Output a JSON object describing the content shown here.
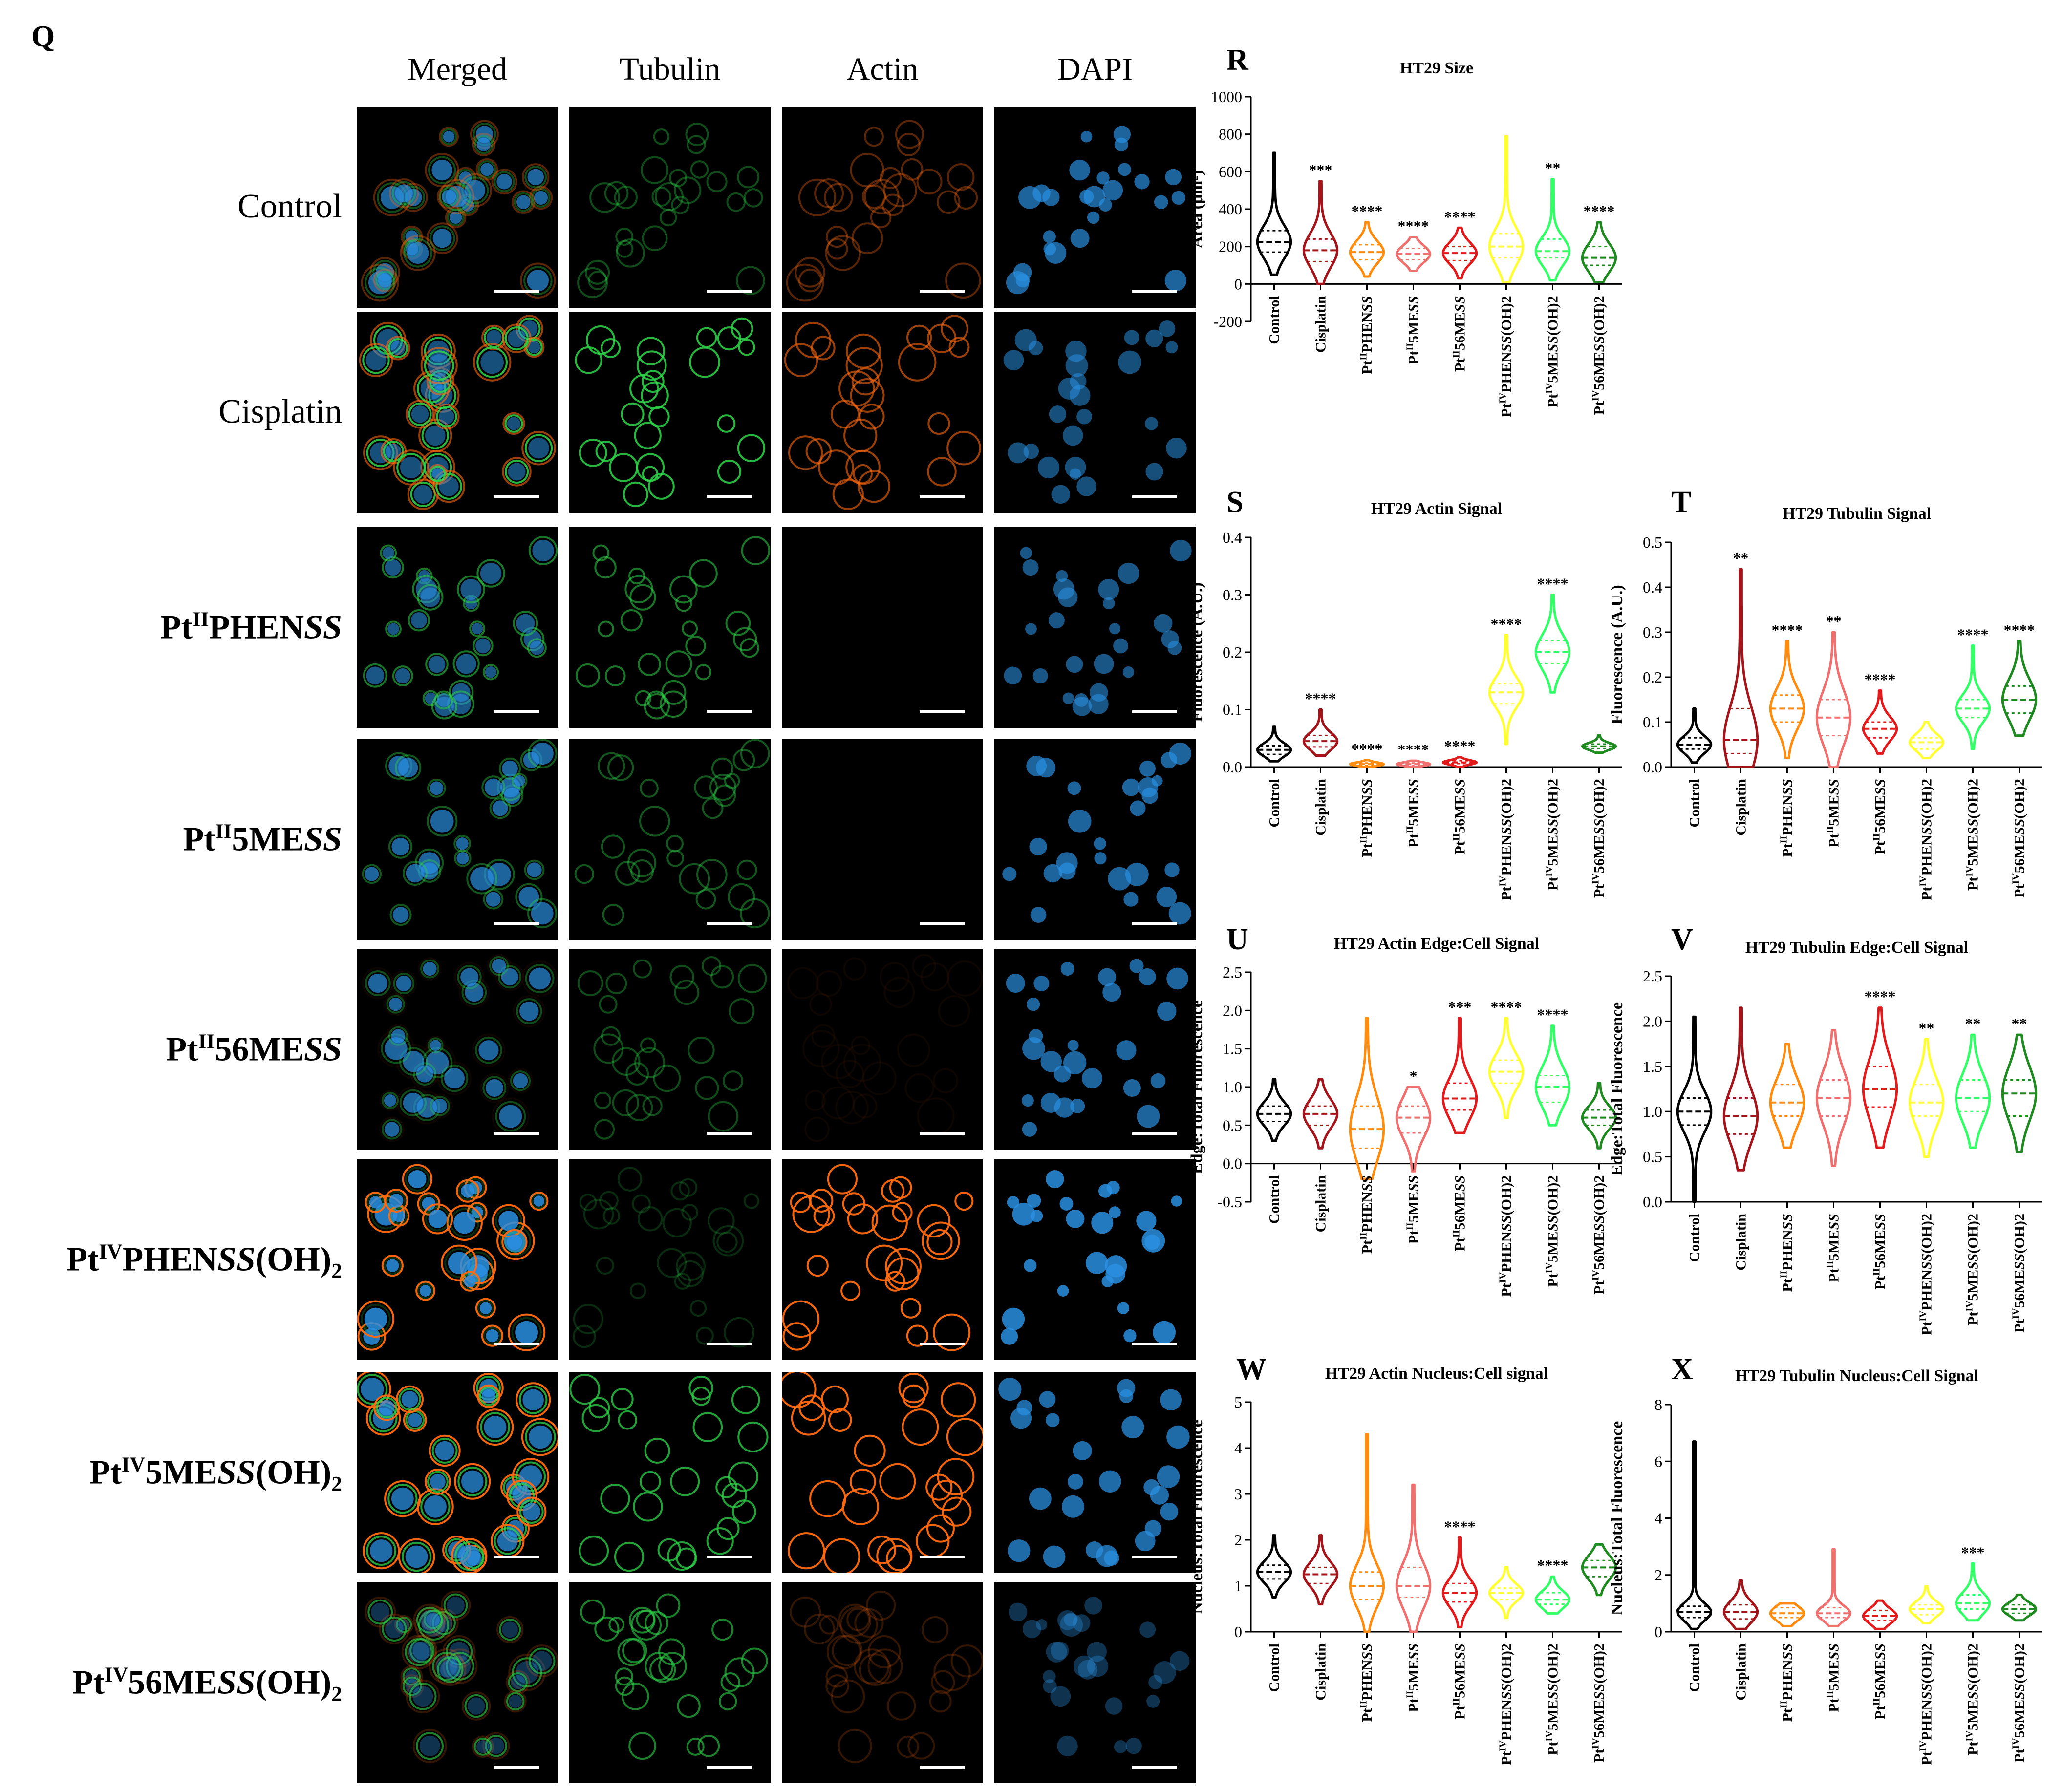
{
  "figure": {
    "panel_q": {
      "label": "Q",
      "columns": [
        "Merged",
        "Tubulin",
        "Actin",
        "DAPI"
      ],
      "rows": [
        {
          "html": "Control",
          "bold": false
        },
        {
          "html": "Cisplatin",
          "bold": false
        },
        {
          "html": "Pt<sup>II</sup>PHEN<i>SS</i>",
          "bold": true
        },
        {
          "html": "Pt<sup>II</sup>5ME<i>SS</i>",
          "bold": true
        },
        {
          "html": "Pt<sup>II</sup>56ME<i>SS</i>",
          "bold": true
        },
        {
          "html": "Pt<sup>IV</sup>PHEN<i>SS</i>(OH)<sub>2</sub>",
          "bold": true
        },
        {
          "html": "Pt<sup>IV</sup>5ME<i>SS</i>(OH)<sub>2</sub>",
          "bold": true
        },
        {
          "html": "Pt<sup>IV</sup>56ME<i>SS</i>(OH)<sub>2</sub>",
          "bold": true
        }
      ],
      "channel_colors": {
        "tubulin": "#2fd64a",
        "actin": "#ff6a10",
        "dapi": "#2a8fe0"
      },
      "row_channel_intensity": [
        {
          "tubulin": 0.35,
          "actin": 0.35,
          "dapi": 0.7
        },
        {
          "tubulin": 0.85,
          "actin": 0.6,
          "dapi": 0.55
        },
        {
          "tubulin": 0.55,
          "actin": 0.0,
          "dapi": 0.6
        },
        {
          "tubulin": 0.4,
          "actin": 0.0,
          "dapi": 0.7
        },
        {
          "tubulin": 0.35,
          "actin": 0.05,
          "dapi": 0.7
        },
        {
          "tubulin": 0.2,
          "actin": 0.95,
          "dapi": 0.85
        },
        {
          "tubulin": 0.75,
          "actin": 0.95,
          "dapi": 0.75
        },
        {
          "tubulin": 0.6,
          "actin": 0.2,
          "dapi": 0.35
        }
      ]
    },
    "groups_names": [
      "Control",
      "Cisplatin",
      "PtIIPHENSS",
      "PtII5MESS",
      "PtII56MESS",
      "PtIVPHENSS(OH)2",
      "PtIV5MESS(OH)2",
      "PtIV56MESS(OH)2"
    ],
    "group_colors": [
      "#000000",
      "#a3151a",
      "#ff8c0f",
      "#f07070",
      "#e31a1c",
      "#ffff33",
      "#33ff66",
      "#1f8a1f"
    ]
  },
  "chart_data": [
    {
      "id": "R",
      "panel_label": "R",
      "type": "violin",
      "title": "HT29 Size",
      "ylabel": "Area (μm²)",
      "ylim": [
        -200,
        1000
      ],
      "yticks": [
        "-200",
        "0",
        "200",
        "400",
        "600",
        "800",
        "1000"
      ],
      "ytick_values": [
        -200,
        0,
        200,
        400,
        600,
        800,
        1000
      ],
      "categories": [
        "Control",
        "Cisplatin",
        "PtIIPHENSS",
        "PtII5MESS",
        "PtII56MESS",
        "PtIVPHENSS(OH)2",
        "PtIV5MESS(OH)2",
        "PtIV56MESS(OH)2"
      ],
      "series": [
        {
          "min": 50,
          "q1": 170,
          "median": 225,
          "q3": 285,
          "max": 700
        },
        {
          "min": 0,
          "q1": 120,
          "median": 180,
          "q3": 240,
          "max": 550
        },
        {
          "min": 40,
          "q1": 130,
          "median": 170,
          "q3": 210,
          "max": 330
        },
        {
          "min": 70,
          "q1": 130,
          "median": 160,
          "q3": 190,
          "max": 250
        },
        {
          "min": 30,
          "q1": 125,
          "median": 165,
          "q3": 200,
          "max": 300
        },
        {
          "min": 10,
          "q1": 140,
          "median": 200,
          "q3": 270,
          "max": 790
        },
        {
          "min": 20,
          "q1": 140,
          "median": 175,
          "q3": 240,
          "max": 560
        },
        {
          "min": 10,
          "q1": 100,
          "median": 140,
          "q3": 200,
          "max": 330
        }
      ],
      "significance": [
        "",
        "***",
        "****",
        "****",
        "****",
        "",
        "**",
        "****"
      ]
    },
    {
      "id": "S",
      "panel_label": "S",
      "type": "violin",
      "title": "HT29 Actin Signal",
      "ylabel": "Fluorescence (A.U.)",
      "ylim": [
        0,
        0.4
      ],
      "yticks": [
        "0.0",
        "0.1",
        "0.2",
        "0.3",
        "0.4"
      ],
      "ytick_values": [
        0,
        0.1,
        0.2,
        0.3,
        0.4
      ],
      "categories": [
        "Control",
        "Cisplatin",
        "PtIIPHENSS",
        "PtII5MESS",
        "PtII56MESS",
        "PtIVPHENSS(OH)2",
        "PtIV5MESS(OH)2",
        "PtIV56MESS(OH)2"
      ],
      "series": [
        {
          "min": 0.01,
          "q1": 0.022,
          "median": 0.03,
          "q3": 0.037,
          "max": 0.07
        },
        {
          "min": 0.02,
          "q1": 0.035,
          "median": 0.045,
          "q3": 0.055,
          "max": 0.1
        },
        {
          "min": 0.0,
          "q1": 0.003,
          "median": 0.005,
          "q3": 0.007,
          "max": 0.012
        },
        {
          "min": 0.0,
          "q1": 0.003,
          "median": 0.005,
          "q3": 0.007,
          "max": 0.011
        },
        {
          "min": 0.0,
          "q1": 0.006,
          "median": 0.008,
          "q3": 0.011,
          "max": 0.017
        },
        {
          "min": 0.04,
          "q1": 0.11,
          "median": 0.13,
          "q3": 0.145,
          "max": 0.23
        },
        {
          "min": 0.13,
          "q1": 0.18,
          "median": 0.2,
          "q3": 0.22,
          "max": 0.3
        },
        {
          "min": 0.025,
          "q1": 0.032,
          "median": 0.036,
          "q3": 0.04,
          "max": 0.055
        }
      ],
      "significance": [
        "",
        "****",
        "****",
        "****",
        "****",
        "****",
        "****",
        ""
      ]
    },
    {
      "id": "T",
      "panel_label": "T",
      "type": "violin",
      "title": "HT29 Tubulin Signal",
      "ylabel": "Fluorescence (A.U.)",
      "ylim": [
        0,
        0.5
      ],
      "yticks": [
        "0.0",
        "0.1",
        "0.2",
        "0.3",
        "0.4",
        "0.5"
      ],
      "ytick_values": [
        0,
        0.1,
        0.2,
        0.3,
        0.4,
        0.5
      ],
      "categories": [
        "Control",
        "Cisplatin",
        "PtIIPHENSS",
        "PtII5MESS",
        "PtII56MESS",
        "PtIVPHENSS(OH)2",
        "PtIV5MESS(OH)2",
        "PtIV56MESS(OH)2"
      ],
      "series": [
        {
          "min": 0.01,
          "q1": 0.04,
          "median": 0.05,
          "q3": 0.065,
          "max": 0.13
        },
        {
          "min": 0.0,
          "q1": 0.03,
          "median": 0.06,
          "q3": 0.13,
          "max": 0.44
        },
        {
          "min": 0.02,
          "q1": 0.1,
          "median": 0.13,
          "q3": 0.16,
          "max": 0.28
        },
        {
          "min": 0.0,
          "q1": 0.07,
          "median": 0.11,
          "q3": 0.15,
          "max": 0.3
        },
        {
          "min": 0.03,
          "q1": 0.065,
          "median": 0.085,
          "q3": 0.1,
          "max": 0.17
        },
        {
          "min": 0.02,
          "q1": 0.04,
          "median": 0.055,
          "q3": 0.065,
          "max": 0.1
        },
        {
          "min": 0.04,
          "q1": 0.11,
          "median": 0.13,
          "q3": 0.15,
          "max": 0.27
        },
        {
          "min": 0.07,
          "q1": 0.12,
          "median": 0.15,
          "q3": 0.18,
          "max": 0.28
        }
      ],
      "significance": [
        "",
        "**",
        "****",
        "**",
        "****",
        "",
        "****",
        "****"
      ]
    },
    {
      "id": "U",
      "panel_label": "U",
      "type": "violin",
      "title": "HT29 Actin Edge:Cell Signal",
      "ylabel": "Edge:Total Fluorescence",
      "ylim": [
        -0.5,
        2.5
      ],
      "yticks": [
        "-0.5",
        "0.0",
        "0.5",
        "1.0",
        "1.5",
        "2.0",
        "2.5"
      ],
      "ytick_values": [
        -0.5,
        0,
        0.5,
        1,
        1.5,
        2,
        2.5
      ],
      "categories": [
        "Control",
        "Cisplatin",
        "PtIIPHENSS",
        "PtII5MESS",
        "PtII56MESS",
        "PtIVPHENSS(OH)2",
        "PtIV5MESS(OH)2",
        "PtIV56MESS(OH)2"
      ],
      "series": [
        {
          "min": 0.3,
          "q1": 0.55,
          "median": 0.65,
          "q3": 0.75,
          "max": 1.1
        },
        {
          "min": 0.2,
          "q1": 0.5,
          "median": 0.65,
          "q3": 0.75,
          "max": 1.1
        },
        {
          "min": -0.2,
          "q1": 0.2,
          "median": 0.45,
          "q3": 0.75,
          "max": 1.9
        },
        {
          "min": -0.1,
          "q1": 0.4,
          "median": 0.6,
          "q3": 0.75,
          "max": 1.0
        },
        {
          "min": 0.4,
          "q1": 0.7,
          "median": 0.85,
          "q3": 1.05,
          "max": 1.9
        },
        {
          "min": 0.6,
          "q1": 1.05,
          "median": 1.2,
          "q3": 1.35,
          "max": 1.9
        },
        {
          "min": 0.5,
          "q1": 0.8,
          "median": 1.0,
          "q3": 1.15,
          "max": 1.8
        },
        {
          "min": 0.2,
          "q1": 0.5,
          "median": 0.6,
          "q3": 0.7,
          "max": 1.05
        }
      ],
      "significance": [
        "",
        "",
        "",
        "*",
        "***",
        "****",
        "****",
        ""
      ]
    },
    {
      "id": "V",
      "panel_label": "V",
      "type": "violin",
      "title": "HT29 Tubulin Edge:Cell Signal",
      "ylabel": "Edge:Total Fluorescence",
      "ylim": [
        0,
        2.5
      ],
      "yticks": [
        "0.0",
        "0.5",
        "1.0",
        "1.5",
        "2.0",
        "2.5"
      ],
      "ytick_values": [
        0,
        0.5,
        1,
        1.5,
        2,
        2.5
      ],
      "categories": [
        "Control",
        "Cisplatin",
        "PtIIPHENSS",
        "PtII5MESS",
        "PtII56MESS",
        "PtIVPHENSS(OH)2",
        "PtIV5MESS(OH)2",
        "PtIV56MESS(OH)2"
      ],
      "series": [
        {
          "min": 0.0,
          "q1": 0.85,
          "median": 1.0,
          "q3": 1.15,
          "max": 2.05
        },
        {
          "min": 0.35,
          "q1": 0.75,
          "median": 0.95,
          "q3": 1.15,
          "max": 2.15
        },
        {
          "min": 0.6,
          "q1": 0.95,
          "median": 1.1,
          "q3": 1.3,
          "max": 1.75
        },
        {
          "min": 0.4,
          "q1": 0.95,
          "median": 1.15,
          "q3": 1.35,
          "max": 1.9
        },
        {
          "min": 0.6,
          "q1": 1.05,
          "median": 1.25,
          "q3": 1.5,
          "max": 2.15
        },
        {
          "min": 0.5,
          "q1": 0.95,
          "median": 1.1,
          "q3": 1.3,
          "max": 1.8
        },
        {
          "min": 0.6,
          "q1": 1.0,
          "median": 1.15,
          "q3": 1.35,
          "max": 1.85
        },
        {
          "min": 0.55,
          "q1": 0.95,
          "median": 1.2,
          "q3": 1.35,
          "max": 1.85
        }
      ],
      "significance": [
        "",
        "",
        "",
        "",
        "****",
        "**",
        "**",
        "**"
      ]
    },
    {
      "id": "W",
      "panel_label": "W",
      "type": "violin",
      "title": "HT29 Actin Nucleus:Cell signal",
      "ylabel": "Nucleus:Total Fluorescence",
      "ylim": [
        0,
        5
      ],
      "yticks": [
        "0",
        "1",
        "2",
        "3",
        "4",
        "5"
      ],
      "ytick_values": [
        0,
        1,
        2,
        3,
        4,
        5
      ],
      "categories": [
        "Control",
        "Cisplatin",
        "PtIIPHENSS",
        "PtII5MESS",
        "PtII56MESS",
        "PtIVPHENSS(OH)2",
        "PtIV5MESS(OH)2",
        "PtIV56MESS(OH)2"
      ],
      "series": [
        {
          "min": 0.75,
          "q1": 1.15,
          "median": 1.3,
          "q3": 1.45,
          "max": 2.1
        },
        {
          "min": 0.6,
          "q1": 1.05,
          "median": 1.25,
          "q3": 1.4,
          "max": 2.1
        },
        {
          "min": 0.0,
          "q1": 0.7,
          "median": 1.0,
          "q3": 1.3,
          "max": 4.3
        },
        {
          "min": 0.0,
          "q1": 0.75,
          "median": 1.0,
          "q3": 1.4,
          "max": 3.2
        },
        {
          "min": 0.1,
          "q1": 0.65,
          "median": 0.85,
          "q3": 1.05,
          "max": 2.05
        },
        {
          "min": 0.3,
          "q1": 0.7,
          "median": 0.85,
          "q3": 0.95,
          "max": 1.4
        },
        {
          "min": 0.4,
          "q1": 0.6,
          "median": 0.7,
          "q3": 0.85,
          "max": 1.2
        },
        {
          "min": 0.8,
          "q1": 1.2,
          "median": 1.4,
          "q3": 1.55,
          "max": 1.9
        }
      ],
      "significance": [
        "",
        "",
        "",
        "",
        "****",
        "",
        "****",
        ""
      ]
    },
    {
      "id": "X",
      "panel_label": "X",
      "type": "violin",
      "title": "HT29 Tubulin Nucleus:Cell Signal",
      "ylabel": "Nucleus:Total Fluorescence",
      "ylim": [
        0,
        8
      ],
      "yticks": [
        "0",
        "2",
        "4",
        "6",
        "8"
      ],
      "ytick_values": [
        0,
        2,
        4,
        6,
        8
      ],
      "categories": [
        "Control",
        "Cisplatin",
        "PtIIPHENSS",
        "PtII5MESS",
        "PtII56MESS",
        "PtIVPHENSS(OH)2",
        "PtIV5MESS(OH)2",
        "PtIV56MESS(OH)2"
      ],
      "series": [
        {
          "min": 0.1,
          "q1": 0.5,
          "median": 0.7,
          "q3": 0.9,
          "max": 6.7
        },
        {
          "min": 0.1,
          "q1": 0.45,
          "median": 0.7,
          "q3": 0.95,
          "max": 1.8
        },
        {
          "min": 0.2,
          "q1": 0.5,
          "median": 0.65,
          "q3": 0.85,
          "max": 1.0
        },
        {
          "min": 0.2,
          "q1": 0.5,
          "median": 0.65,
          "q3": 0.85,
          "max": 2.9
        },
        {
          "min": 0.1,
          "q1": 0.4,
          "median": 0.55,
          "q3": 0.75,
          "max": 1.1
        },
        {
          "min": 0.3,
          "q1": 0.6,
          "median": 0.8,
          "q3": 0.95,
          "max": 1.6
        },
        {
          "min": 0.4,
          "q1": 0.8,
          "median": 1.0,
          "q3": 1.3,
          "max": 2.4
        },
        {
          "min": 0.4,
          "q1": 0.65,
          "median": 0.8,
          "q3": 0.95,
          "max": 1.3
        }
      ],
      "significance": [
        "",
        "",
        "",
        "",
        "",
        "",
        "***",
        ""
      ]
    }
  ]
}
